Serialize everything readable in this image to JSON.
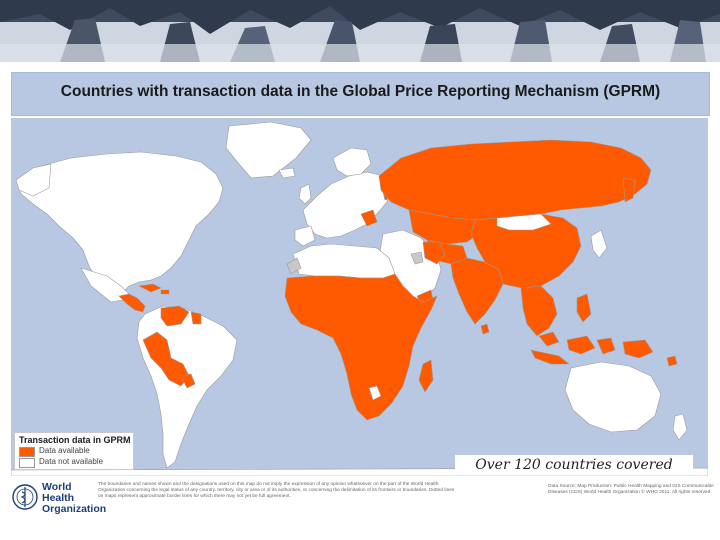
{
  "title": "Countries with transaction data in the Global Price Reporting Mechanism (GPRM)",
  "legend": {
    "title": "Transaction data in GPRM",
    "items": [
      {
        "label": "Data available",
        "color": "#ff5a00"
      },
      {
        "label": "Data not available",
        "color": "#ffffff"
      }
    ]
  },
  "caption": "Over 120 countries covered",
  "footer": {
    "org_name": "World Health Organization",
    "disclaimer": "The boundaries and names shown and the designations used on this map do not imply the expression of any opinion whatsoever on the part of the World Health Organization concerning the legal status of any country, territory, city or area or of its authorities, or concerning the delimitation of its frontiers or boundaries. Dotted lines on maps represent approximate border lines for which there may not yet be full agreement.",
    "source": "Data Source: Map Production: Public Health Mapping and GIS Communicable Diseases (CDS) World Health Organization © WHO 2011. All rights reserved"
  },
  "colors": {
    "ocean": "#b8c8e3",
    "available": "#ff5a00",
    "not_available": "#ffffff",
    "no_data_gray": "#c8c8c8",
    "border": "#9a9a9a"
  }
}
